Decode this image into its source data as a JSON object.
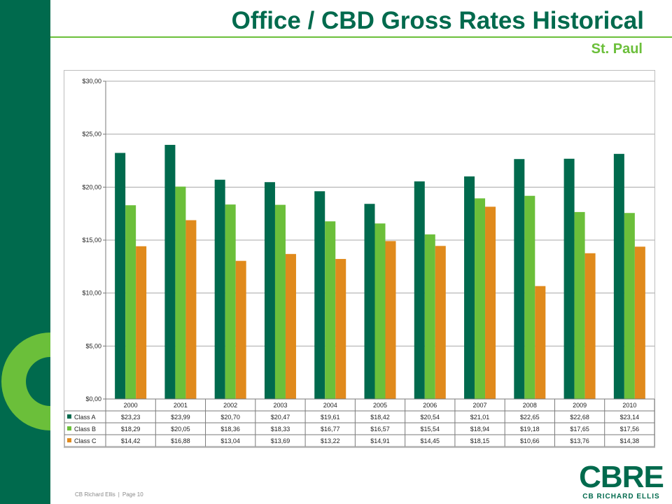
{
  "title": "Office / CBD Gross Rates Historical",
  "subtitle": "St. Paul",
  "footer": {
    "company": "CB Richard Ellis",
    "page": "Page 10"
  },
  "logo": {
    "mark": "CBRE",
    "sub": "CB RICHARD ELLIS"
  },
  "colors": {
    "brand_green": "#006a4d",
    "accent_green": "#6bbf3a",
    "class_a": "#006a4d",
    "class_b": "#6bbf3a",
    "class_c": "#e08a1c"
  },
  "chart_data": {
    "type": "bar",
    "categories": [
      "2000",
      "2001",
      "2002",
      "2003",
      "2004",
      "2005",
      "2006",
      "2007",
      "2008",
      "2009",
      "2010"
    ],
    "series": [
      {
        "name": "Class A",
        "values": [
          23.23,
          23.99,
          20.7,
          20.47,
          19.61,
          18.42,
          20.54,
          21.01,
          22.65,
          22.68,
          23.14
        ],
        "labels": [
          "$23,23",
          "$23,99",
          "$20,70",
          "$20,47",
          "$19,61",
          "$18,42",
          "$20,54",
          "$21,01",
          "$22,65",
          "$22,68",
          "$23,14"
        ]
      },
      {
        "name": "Class B",
        "values": [
          18.29,
          20.05,
          18.36,
          18.33,
          16.77,
          16.57,
          15.54,
          18.94,
          19.18,
          17.65,
          17.56
        ],
        "labels": [
          "$18,29",
          "$20,05",
          "$18,36",
          "$18,33",
          "$16,77",
          "$16,57",
          "$15,54",
          "$18,94",
          "$19,18",
          "$17,65",
          "$17,56"
        ]
      },
      {
        "name": "Class C",
        "values": [
          14.42,
          16.88,
          13.04,
          13.69,
          13.22,
          14.91,
          14.45,
          18.15,
          10.66,
          13.76,
          14.38
        ],
        "labels": [
          "$14,42",
          "$16,88",
          "$13,04",
          "$13,69",
          "$13,22",
          "$14,91",
          "$14,45",
          "$18,15",
          "$10,66",
          "$13,76",
          "$14,38"
        ]
      }
    ],
    "ylim": [
      0,
      30
    ],
    "yticks": [
      0,
      5,
      10,
      15,
      20,
      25,
      30
    ],
    "ytick_labels": [
      "$0,00",
      "$5,00",
      "$10,00",
      "$15,00",
      "$20,00",
      "$25,00",
      "$30,00"
    ],
    "grid": true,
    "legend": "data-table"
  }
}
